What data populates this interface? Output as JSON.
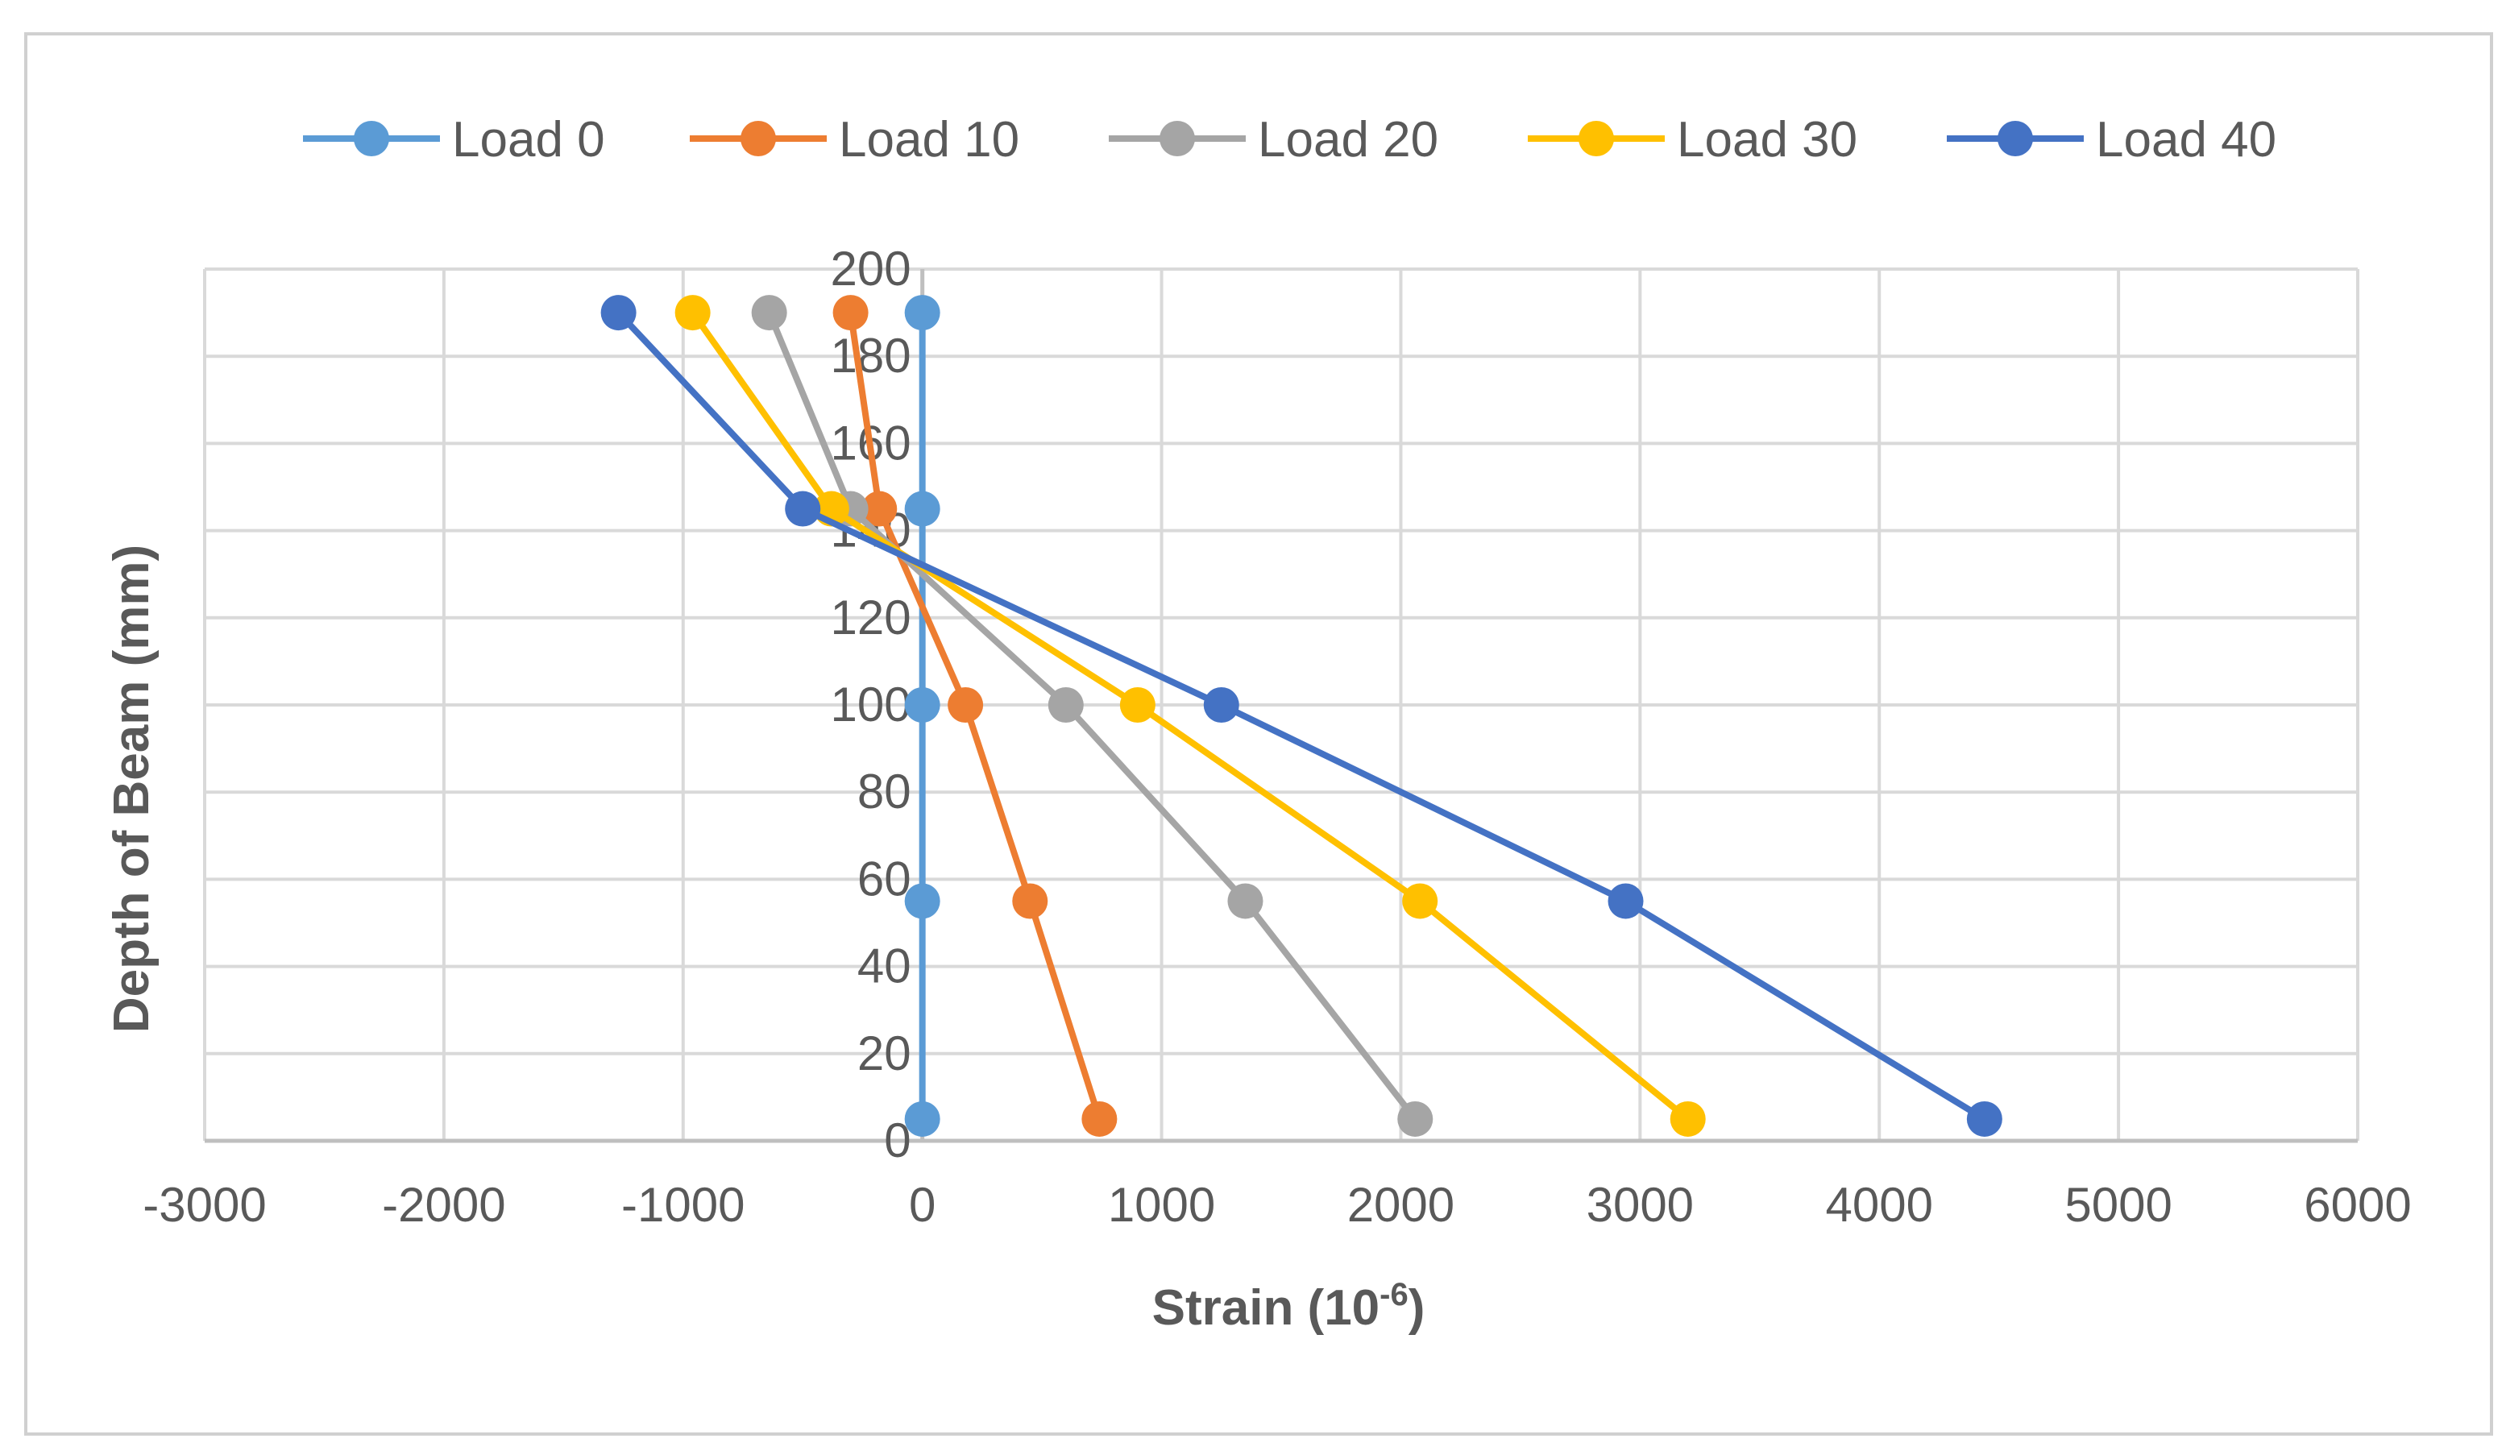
{
  "chart_data": {
    "type": "line",
    "title": "",
    "xlabel": "Strain (10",
    "xlabel_superscript": "-6",
    "xlabel_suffix": ")",
    "ylabel": "Depth of Beam (mm)",
    "xlim": [
      -3000,
      6000
    ],
    "ylim": [
      0,
      200
    ],
    "x_ticks": [
      -3000,
      -2000,
      -1000,
      0,
      1000,
      2000,
      3000,
      4000,
      5000,
      6000
    ],
    "y_ticks": [
      0,
      20,
      40,
      60,
      80,
      100,
      120,
      140,
      160,
      180,
      200
    ],
    "grid": true,
    "legend_position": "top",
    "y": [
      5,
      55,
      100,
      145,
      190
    ],
    "series": [
      {
        "name": "Load 0",
        "color": "#5b9bd5",
        "x": [
          0,
          0,
          0,
          0,
          0
        ]
      },
      {
        "name": "Load 10",
        "color": "#ed7d31",
        "x": [
          740,
          450,
          180,
          -180,
          -300
        ]
      },
      {
        "name": "Load 20",
        "color": "#a5a5a5",
        "x": [
          2060,
          1350,
          600,
          -300,
          -640
        ]
      },
      {
        "name": "Load 30",
        "color": "#ffc000",
        "x": [
          3200,
          2080,
          900,
          -380,
          -960
        ]
      },
      {
        "name": "Load 40",
        "color": "#4472c4",
        "x": [
          4440,
          2940,
          1250,
          -500,
          -1270
        ]
      }
    ]
  }
}
